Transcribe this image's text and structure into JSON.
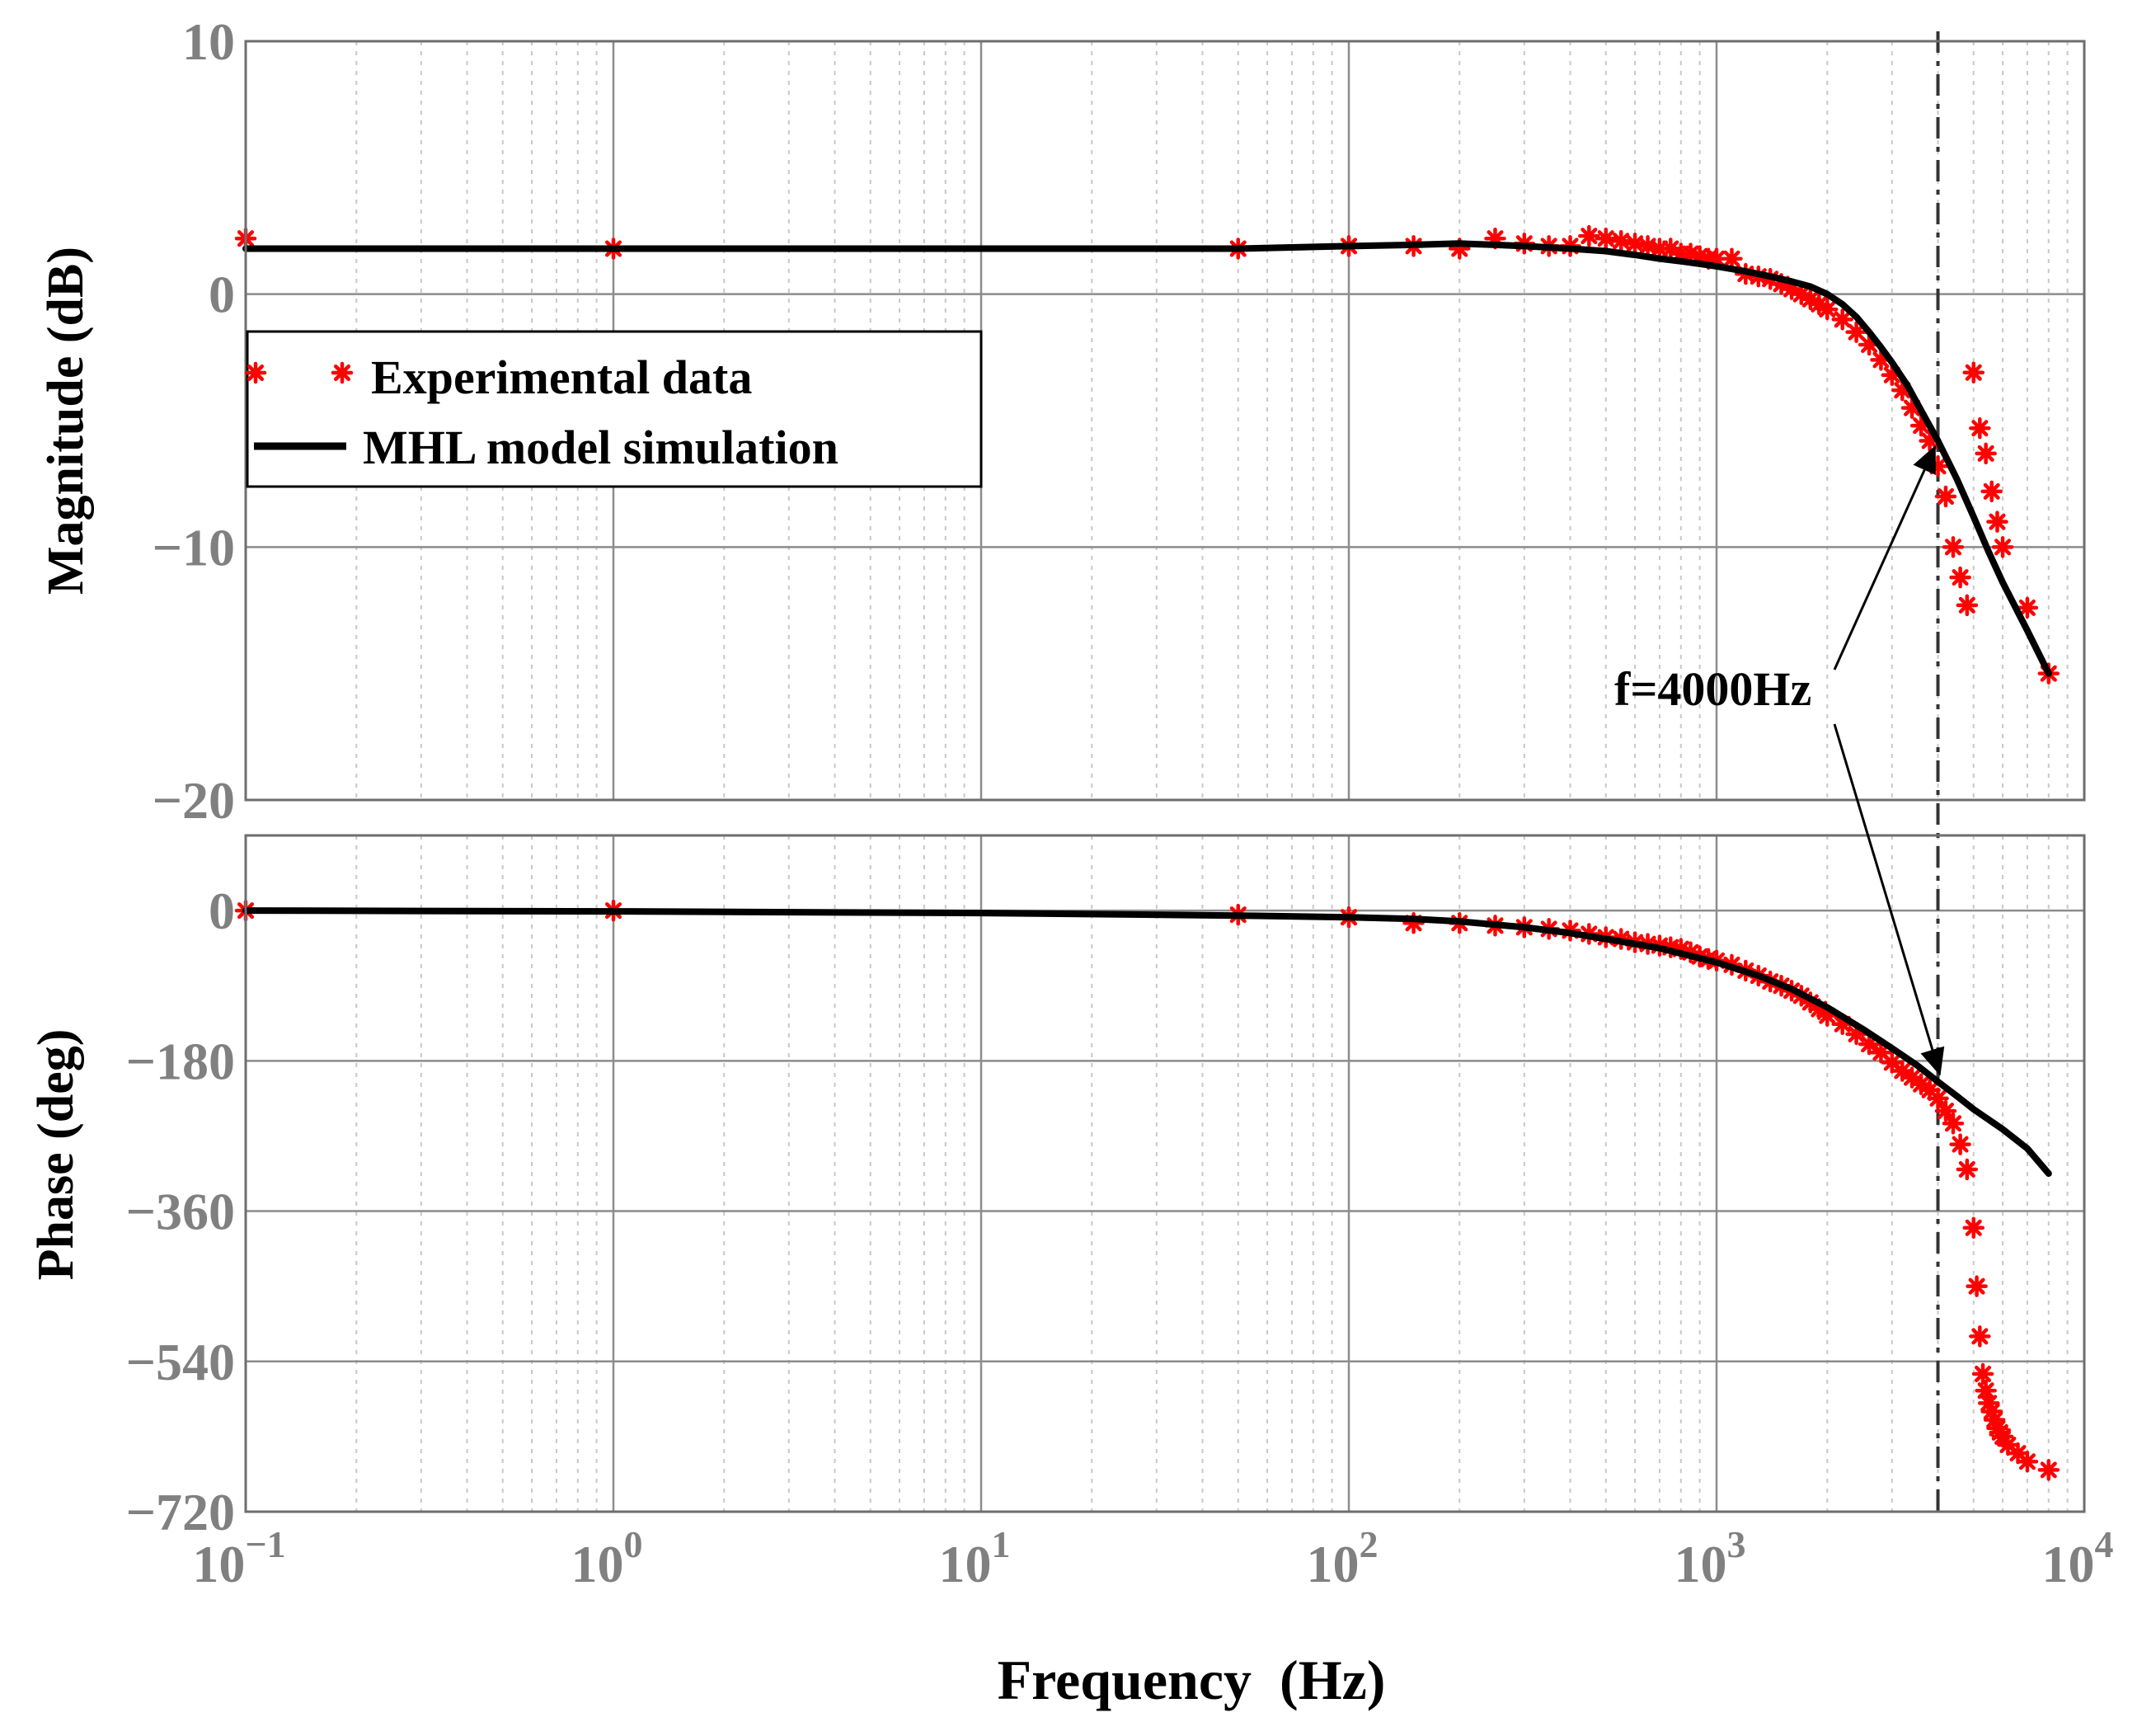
{
  "chart_data": [
    {
      "type": "line",
      "name": "magnitude",
      "ylabel": "Magnitude (dB)",
      "xscale": "log",
      "xlim": [
        0.1,
        10000
      ],
      "ylim": [
        -20,
        10
      ],
      "yticks": [
        10,
        0,
        -10,
        -20
      ],
      "ytick_labels": [
        "10",
        "0",
        "−10",
        "−20"
      ],
      "grid": true,
      "series": [
        {
          "name": "Experimental data",
          "style": "markers",
          "color": "#ff0000",
          "x": [
            0.1,
            1,
            50,
            100,
            150,
            200,
            250,
            300,
            350,
            400,
            450,
            500,
            550,
            600,
            650,
            700,
            750,
            800,
            850,
            900,
            950,
            1000,
            1100,
            1200,
            1300,
            1400,
            1500,
            1600,
            1700,
            1800,
            1900,
            2000,
            2200,
            2400,
            2600,
            2800,
            3000,
            3200,
            3400,
            3600,
            3800,
            4000,
            4200,
            4400,
            4600,
            4800,
            5000,
            5200,
            5400,
            5600,
            5800,
            6000,
            7000,
            8000
          ],
          "y": [
            2.2,
            1.8,
            1.8,
            1.9,
            1.9,
            1.8,
            2.2,
            2.0,
            1.9,
            1.9,
            2.3,
            2.2,
            2.1,
            2.0,
            1.9,
            1.8,
            1.8,
            1.6,
            1.6,
            1.5,
            1.4,
            1.4,
            1.4,
            0.8,
            0.7,
            0.6,
            0.4,
            0.2,
            0.0,
            -0.2,
            -0.4,
            -0.6,
            -1.0,
            -1.5,
            -2.0,
            -2.6,
            -3.2,
            -3.8,
            -4.5,
            -5.2,
            -5.8,
            -6.8,
            -8.0,
            -10.0,
            -11.2,
            -12.3,
            -3.1,
            -5.3,
            -6.3,
            -7.8,
            -9.0,
            -10.0,
            -12.4,
            -15.0
          ]
        },
        {
          "name": "MHL model simulation",
          "style": "line",
          "color": "#000000",
          "x": [
            0.1,
            1,
            10,
            50,
            100,
            150,
            200,
            250,
            300,
            400,
            500,
            600,
            700,
            800,
            900,
            1000,
            1200,
            1400,
            1600,
            1800,
            2000,
            2200,
            2400,
            2600,
            2800,
            3000,
            3300,
            3600,
            4000,
            4500,
            5000,
            5500,
            6000,
            7000,
            8000
          ],
          "y": [
            1.8,
            1.8,
            1.8,
            1.8,
            1.9,
            1.95,
            2.0,
            1.95,
            1.9,
            1.8,
            1.7,
            1.55,
            1.4,
            1.3,
            1.2,
            1.1,
            0.9,
            0.7,
            0.5,
            0.3,
            0.0,
            -0.4,
            -0.9,
            -1.5,
            -2.1,
            -2.7,
            -3.6,
            -4.6,
            -5.8,
            -7.3,
            -8.8,
            -10.2,
            -11.4,
            -13.3,
            -15.0
          ]
        }
      ]
    },
    {
      "type": "line",
      "name": "phase",
      "ylabel": "Phase (deg)",
      "xlabel": "Frequency  (Hz)",
      "xscale": "log",
      "xlim": [
        0.1,
        10000
      ],
      "ylim": [
        -720,
        90
      ],
      "yticks": [
        0,
        -180,
        -360,
        -540,
        -720
      ],
      "ytick_labels": [
        "0",
        "−180",
        "−360",
        "−540",
        "−720"
      ],
      "xtick_values": [
        0.1,
        1,
        10,
        100,
        1000,
        10000
      ],
      "xtick_bases": [
        "10",
        "10",
        "10",
        "10",
        "10",
        "10"
      ],
      "xtick_exponents": [
        "−1",
        "0",
        "1",
        "2",
        "3",
        "4"
      ],
      "grid": true,
      "series": [
        {
          "name": "Experimental data",
          "style": "markers",
          "color": "#ff0000",
          "x": [
            0.1,
            1,
            50,
            100,
            150,
            200,
            250,
            300,
            350,
            400,
            450,
            500,
            550,
            600,
            650,
            700,
            750,
            800,
            850,
            900,
            950,
            1000,
            1100,
            1200,
            1300,
            1400,
            1500,
            1600,
            1700,
            1800,
            1900,
            2000,
            2200,
            2400,
            2600,
            2800,
            3000,
            3200,
            3400,
            3600,
            3800,
            4000,
            4200,
            4400,
            4600,
            4800,
            5000,
            5100,
            5200,
            5300,
            5400,
            5500,
            5600,
            5700,
            5800,
            5900,
            6000,
            6200,
            6600,
            7000,
            8000
          ],
          "y": [
            0,
            0,
            -5,
            -8,
            -15,
            -15,
            -18,
            -20,
            -22,
            -24,
            -28,
            -32,
            -34,
            -38,
            -40,
            -42,
            -44,
            -46,
            -50,
            -55,
            -58,
            -60,
            -65,
            -72,
            -78,
            -85,
            -90,
            -96,
            -102,
            -110,
            -118,
            -126,
            -136,
            -148,
            -160,
            -170,
            -182,
            -192,
            -200,
            -208,
            -215,
            -225,
            -240,
            -255,
            -280,
            -310,
            -380,
            -450,
            -510,
            -555,
            -575,
            -590,
            -600,
            -610,
            -620,
            -625,
            -630,
            -640,
            -650,
            -660,
            -670
          ]
        },
        {
          "name": "MHL model simulation",
          "style": "line",
          "color": "#000000",
          "x": [
            0.1,
            1,
            10,
            50,
            100,
            150,
            200,
            300,
            400,
            500,
            700,
            1000,
            1300,
            1600,
            2000,
            2500,
            3000,
            3500,
            4000,
            4500,
            5000,
            6000,
            7000,
            8000
          ],
          "y": [
            0,
            -1,
            -3,
            -6,
            -8,
            -10,
            -13,
            -20,
            -27,
            -34,
            -45,
            -62,
            -78,
            -94,
            -116,
            -142,
            -165,
            -185,
            -205,
            -222,
            -238,
            -262,
            -285,
            -315
          ]
        }
      ]
    }
  ],
  "legend": {
    "placement": "top-left of magnitude panel",
    "entries": [
      "Experimental data",
      "MHL model simulation"
    ]
  },
  "annotation": {
    "text": "f=4000Hz",
    "frequency": 4000,
    "points_to": [
      "magnitude curve at 4000 Hz",
      "phase curve at 4000 Hz"
    ],
    "marker_line": "vertical dash-dot line at 4000 Hz spanning both panels"
  },
  "colors": {
    "experimental": "#ff0000",
    "simulation": "#000000",
    "tick_text": "#808080",
    "major_grid": "#8c8c8c",
    "minor_grid": "#c8c8c8"
  }
}
